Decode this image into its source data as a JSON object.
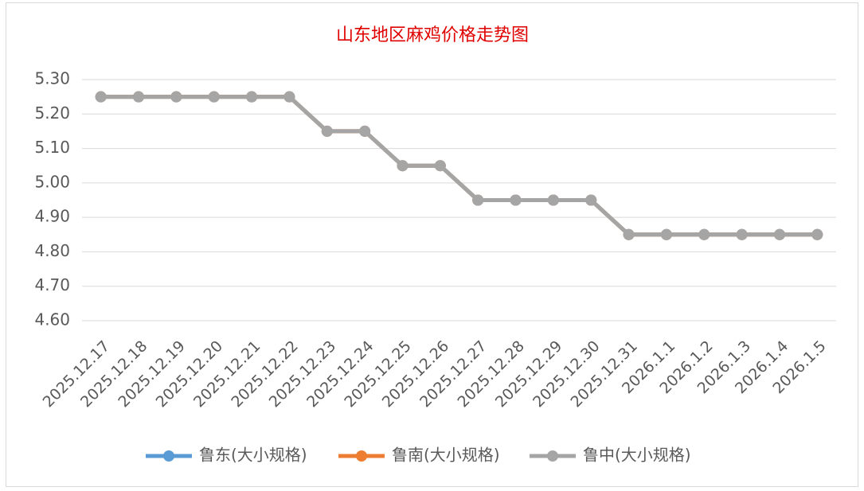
{
  "chart_data": {
    "type": "line",
    "title": "山东地区麻鸡价格走势图",
    "categories": [
      "2025.12.17",
      "2025.12.18",
      "2025.12.19",
      "2025.12.20",
      "2025.12.21",
      "2025.12.22",
      "2025.12.23",
      "2025.12.24",
      "2025.12.25",
      "2025.12.26",
      "2025.12.27",
      "2025.12.28",
      "2025.12.29",
      "2025.12.30",
      "2025.12.31",
      "2026.1.1",
      "2026.1.2",
      "2026.1.3",
      "2026.1.4",
      "2026.1.5"
    ],
    "series": [
      {
        "name": "鲁东(大小规格)",
        "color": "#5b9bd5",
        "values": [
          5.25,
          5.25,
          5.25,
          5.25,
          5.25,
          5.25,
          5.15,
          5.15,
          5.05,
          5.05,
          4.95,
          4.95,
          4.95,
          4.95,
          4.85,
          4.85,
          4.85,
          4.85,
          4.85,
          4.85
        ]
      },
      {
        "name": "鲁南(大小规格)",
        "color": "#ed7d31",
        "values": [
          5.25,
          5.25,
          5.25,
          5.25,
          5.25,
          5.25,
          5.15,
          5.15,
          5.05,
          5.05,
          4.95,
          4.95,
          4.95,
          4.95,
          4.85,
          4.85,
          4.85,
          4.85,
          4.85,
          4.85
        ]
      },
      {
        "name": "鲁中(大小规格)",
        "color": "#a5a5a5",
        "values": [
          5.25,
          5.25,
          5.25,
          5.25,
          5.25,
          5.25,
          5.15,
          5.15,
          5.05,
          5.05,
          4.95,
          4.95,
          4.95,
          4.95,
          4.85,
          4.85,
          4.85,
          4.85,
          4.85,
          4.85
        ]
      }
    ],
    "ylim": [
      4.6,
      5.3
    ],
    "yticks": [
      {
        "value": 4.6,
        "label": "4.60"
      },
      {
        "value": 4.7,
        "label": "4.70"
      },
      {
        "value": 4.8,
        "label": "4.80"
      },
      {
        "value": 4.9,
        "label": "4.90"
      },
      {
        "value": 5.0,
        "label": "5.00"
      },
      {
        "value": 5.1,
        "label": "5.10"
      },
      {
        "value": 5.2,
        "label": "5.20"
      },
      {
        "value": 5.3,
        "label": "5.30"
      }
    ],
    "grid": true,
    "legend": "bottom"
  }
}
